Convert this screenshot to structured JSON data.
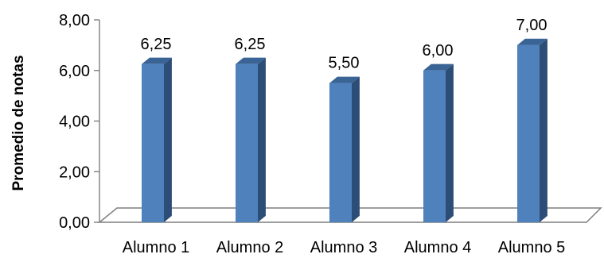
{
  "chart_data": {
    "type": "bar",
    "categories": [
      "Alumno 1",
      "Alumno 2",
      "Alumno 3",
      "Alumno 4",
      "Alumno 5"
    ],
    "values": [
      6.25,
      6.25,
      5.5,
      6.0,
      7.0
    ],
    "data_labels": [
      "6,25",
      "6,25",
      "5,50",
      "6,00",
      "7,00"
    ],
    "ylabel": "Promedio de notas",
    "ylim": [
      0,
      8
    ],
    "yticks": [
      0,
      2,
      4,
      6,
      8
    ],
    "ytick_labels": [
      "0,00",
      "2,00",
      "4,00",
      "6,00",
      "8,00"
    ],
    "grid": false,
    "legend": "none",
    "style": "3d-column",
    "colors": {
      "bar_front": "#4F81BD",
      "bar_side": "#2C4D75",
      "bar_top": "#3A6496",
      "floor": "#7F7F7F",
      "axis": "#868686"
    }
  }
}
